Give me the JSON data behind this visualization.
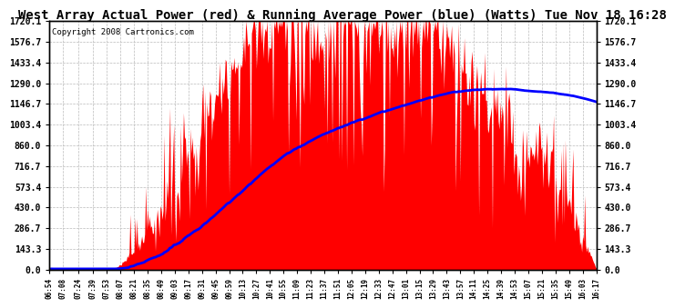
{
  "title": "West Array Actual Power (red) & Running Average Power (blue) (Watts) Tue Nov 18 16:28",
  "copyright": "Copyright 2008 Cartronics.com",
  "y_ticks": [
    0.0,
    143.3,
    286.7,
    430.0,
    573.4,
    716.7,
    860.0,
    1003.4,
    1146.7,
    1290.0,
    1433.4,
    1576.7,
    1720.1
  ],
  "ymax": 1720.1,
  "ymin": 0.0,
  "actual_color": "#FF0000",
  "avg_color": "#0000FF",
  "background_color": "#FFFFFF",
  "plot_bg_color": "#FFFFFF",
  "grid_color": "#BBBBBB",
  "title_fontsize": 10,
  "copyright_fontsize": 6.5,
  "tick_fontsize": 7,
  "x_labels": [
    "06:54",
    "07:08",
    "07:24",
    "07:39",
    "07:53",
    "08:07",
    "08:21",
    "08:35",
    "08:49",
    "09:03",
    "09:17",
    "09:31",
    "09:45",
    "09:59",
    "10:13",
    "10:27",
    "10:41",
    "10:55",
    "11:09",
    "11:23",
    "11:37",
    "11:51",
    "12:05",
    "12:19",
    "12:33",
    "12:47",
    "13:01",
    "13:15",
    "13:29",
    "13:43",
    "13:57",
    "14:11",
    "14:25",
    "14:39",
    "14:53",
    "15:07",
    "15:21",
    "15:35",
    "15:49",
    "16:03",
    "16:17"
  ]
}
